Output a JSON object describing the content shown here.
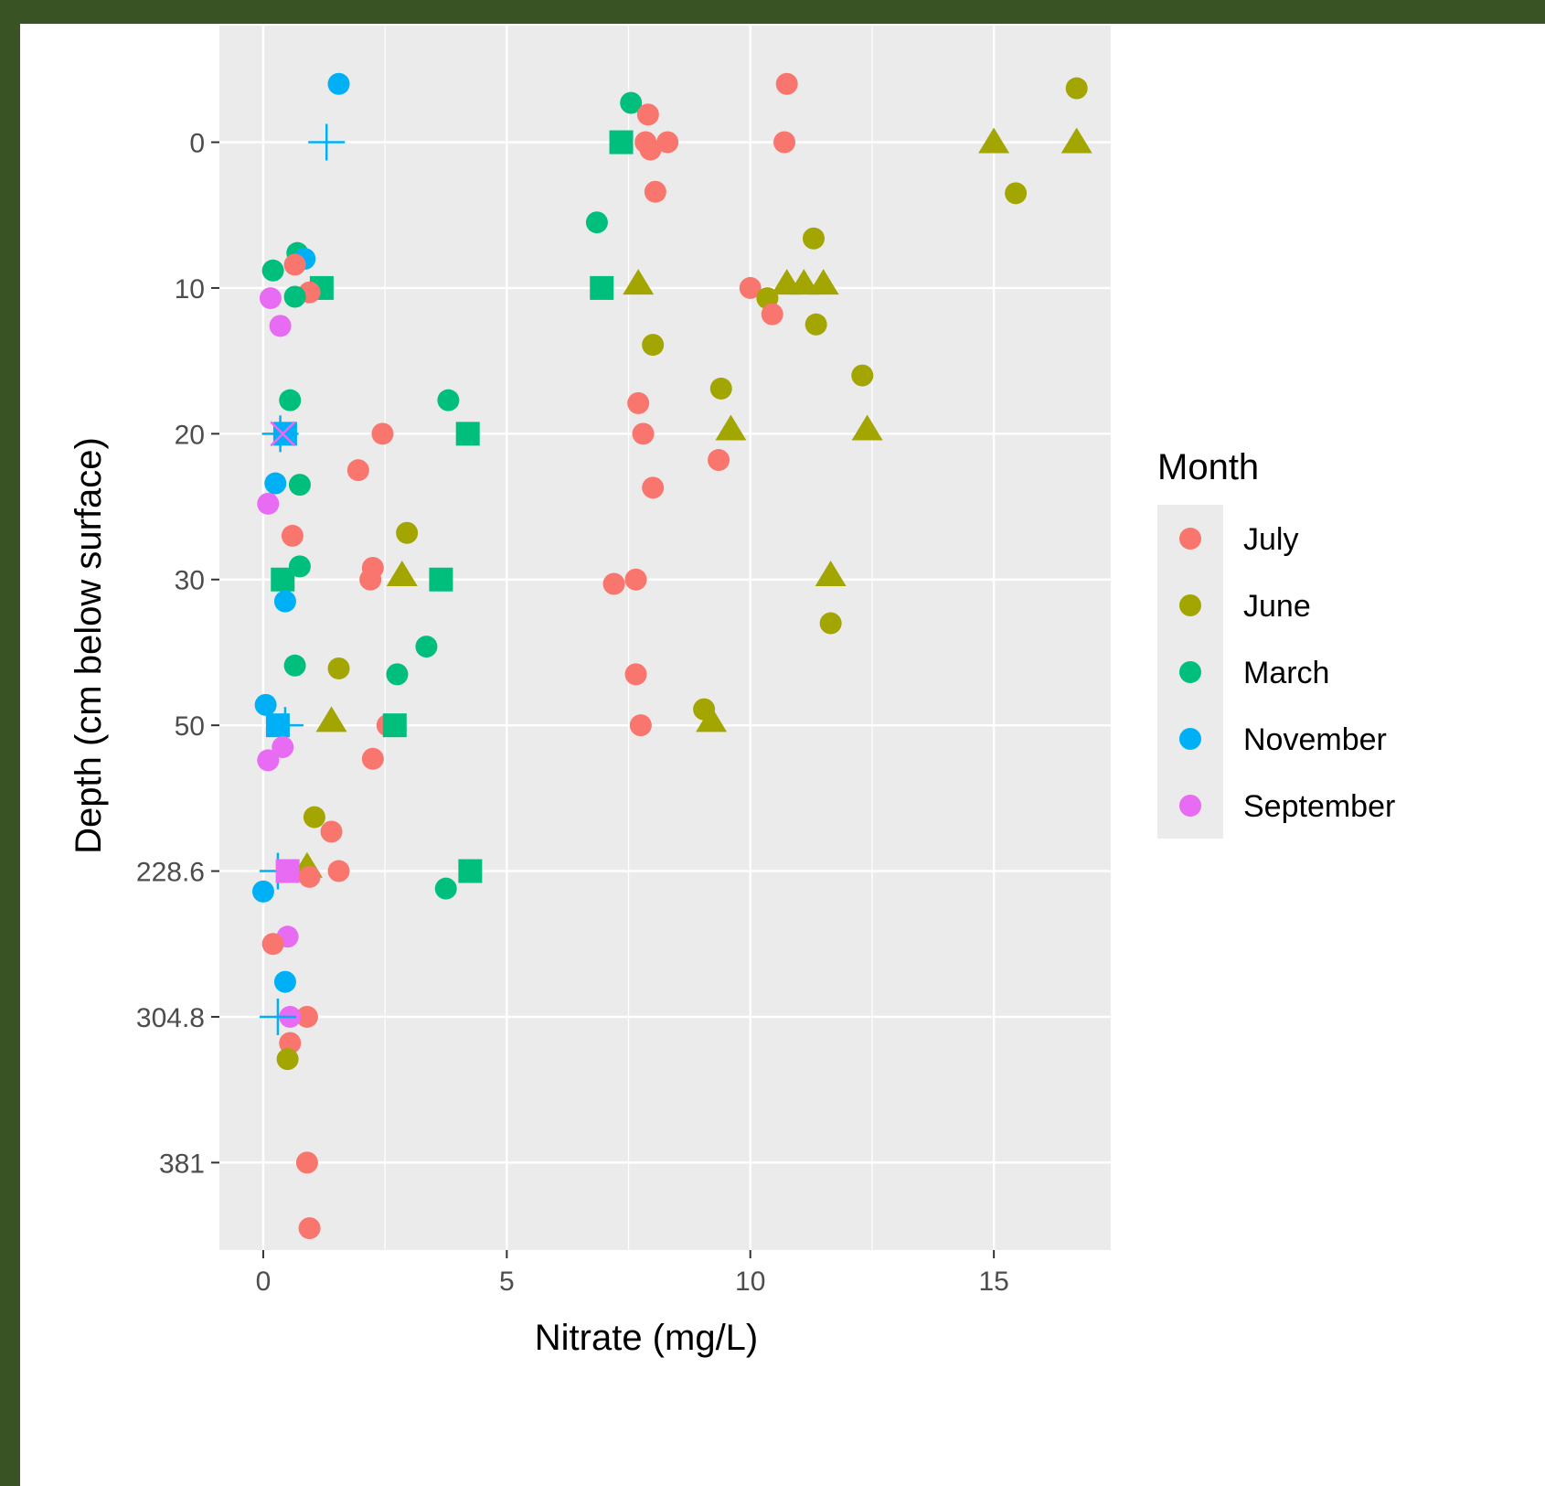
{
  "chart_data": {
    "type": "scatter",
    "title": "",
    "xlabel": "Nitrate (mg/L)",
    "ylabel": "Depth (cm below surface)",
    "xlim": [
      -0.9,
      17.4
    ],
    "x_ticks": [
      0,
      5,
      10,
      15
    ],
    "y_ticks": [
      "0",
      "10",
      "20",
      "30",
      "50",
      "228.6",
      "304.8",
      "381"
    ],
    "y_axis_note": "discrete depth categories, top to bottom",
    "grid": true,
    "legend_title": "Month",
    "legend_position": "right",
    "colors": {
      "July": "#F8766D",
      "June": "#A3A500",
      "March": "#00BF7D",
      "November": "#00B0F6",
      "September": "#E76BF3"
    },
    "legend": [
      "July",
      "June",
      "March",
      "November",
      "September"
    ],
    "points": [
      {
        "m": "November",
        "x": 1.55,
        "y": -0.4,
        "s": "circle"
      },
      {
        "m": "July",
        "x": 10.75,
        "y": -0.4,
        "s": "circle"
      },
      {
        "m": "June",
        "x": 16.7,
        "y": -0.37,
        "s": "circle"
      },
      {
        "m": "March",
        "x": 7.55,
        "y": -0.27,
        "s": "circle"
      },
      {
        "m": "July",
        "x": 7.9,
        "y": -0.19,
        "s": "circle"
      },
      {
        "m": "November",
        "x": 1.3,
        "y": 0,
        "s": "plus"
      },
      {
        "m": "March",
        "x": 7.35,
        "y": 0,
        "s": "square"
      },
      {
        "m": "July",
        "x": 7.85,
        "y": 0,
        "s": "circle"
      },
      {
        "m": "July",
        "x": 8.3,
        "y": 0,
        "s": "circle"
      },
      {
        "m": "July",
        "x": 7.95,
        "y": 0.05,
        "s": "circle"
      },
      {
        "m": "July",
        "x": 10.7,
        "y": 0,
        "s": "circle"
      },
      {
        "m": "June",
        "x": 15.0,
        "y": 0,
        "s": "triangle"
      },
      {
        "m": "June",
        "x": 16.7,
        "y": 0,
        "s": "triangle"
      },
      {
        "m": "July",
        "x": 8.05,
        "y": 0.34,
        "s": "circle"
      },
      {
        "m": "June",
        "x": 15.45,
        "y": 0.35,
        "s": "circle"
      },
      {
        "m": "March",
        "x": 6.85,
        "y": 0.55,
        "s": "circle"
      },
      {
        "m": "June",
        "x": 11.3,
        "y": 0.66,
        "s": "circle"
      },
      {
        "m": "March",
        "x": 0.7,
        "y": 0.76,
        "s": "circle"
      },
      {
        "m": "November",
        "x": 0.85,
        "y": 0.8,
        "s": "circle"
      },
      {
        "m": "July",
        "x": 0.65,
        "y": 0.84,
        "s": "circle"
      },
      {
        "m": "March",
        "x": 0.2,
        "y": 0.88,
        "s": "circle"
      },
      {
        "m": "March",
        "x": 1.2,
        "y": 1.0,
        "s": "square"
      },
      {
        "m": "July",
        "x": 0.95,
        "y": 1.03,
        "s": "circle"
      },
      {
        "m": "March",
        "x": 0.65,
        "y": 1.06,
        "s": "circle"
      },
      {
        "m": "March",
        "x": 6.95,
        "y": 1.0,
        "s": "square"
      },
      {
        "m": "June",
        "x": 7.7,
        "y": 0.97,
        "s": "triangle"
      },
      {
        "m": "July",
        "x": 10.0,
        "y": 1.0,
        "s": "circle"
      },
      {
        "m": "June",
        "x": 10.35,
        "y": 1.07,
        "s": "circle"
      },
      {
        "m": "June",
        "x": 10.75,
        "y": 0.97,
        "s": "triangle"
      },
      {
        "m": "June",
        "x": 11.1,
        "y": 0.97,
        "s": "triangle"
      },
      {
        "m": "June",
        "x": 11.5,
        "y": 0.97,
        "s": "triangle"
      },
      {
        "m": "July",
        "x": 10.45,
        "y": 1.18,
        "s": "circle"
      },
      {
        "m": "September",
        "x": 0.15,
        "y": 1.07,
        "s": "circle"
      },
      {
        "m": "June",
        "x": 11.35,
        "y": 1.25,
        "s": "circle"
      },
      {
        "m": "September",
        "x": 0.35,
        "y": 1.26,
        "s": "circle"
      },
      {
        "m": "June",
        "x": 8.0,
        "y": 1.39,
        "s": "circle"
      },
      {
        "m": "June",
        "x": 12.3,
        "y": 1.6,
        "s": "circle"
      },
      {
        "m": "June",
        "x": 9.4,
        "y": 1.69,
        "s": "circle"
      },
      {
        "m": "March",
        "x": 0.55,
        "y": 1.77,
        "s": "circle"
      },
      {
        "m": "March",
        "x": 3.8,
        "y": 1.77,
        "s": "circle"
      },
      {
        "m": "July",
        "x": 7.7,
        "y": 1.79,
        "s": "circle"
      },
      {
        "m": "November",
        "x": 0.45,
        "y": 2.0,
        "s": "square"
      },
      {
        "m": "November",
        "x": 0.35,
        "y": 2.0,
        "s": "plus"
      },
      {
        "m": "September",
        "x": 0.4,
        "y": 2.0,
        "s": "cross"
      },
      {
        "m": "July",
        "x": 2.45,
        "y": 2.0,
        "s": "circle"
      },
      {
        "m": "March",
        "x": 4.2,
        "y": 2.0,
        "s": "square"
      },
      {
        "m": "July",
        "x": 7.8,
        "y": 2.0,
        "s": "circle"
      },
      {
        "m": "June",
        "x": 9.6,
        "y": 1.97,
        "s": "triangle"
      },
      {
        "m": "June",
        "x": 12.4,
        "y": 1.97,
        "s": "triangle"
      },
      {
        "m": "July",
        "x": 9.35,
        "y": 2.18,
        "s": "circle"
      },
      {
        "m": "July",
        "x": 1.95,
        "y": 2.25,
        "s": "circle"
      },
      {
        "m": "November",
        "x": 0.25,
        "y": 2.34,
        "s": "circle"
      },
      {
        "m": "March",
        "x": 0.75,
        "y": 2.35,
        "s": "circle"
      },
      {
        "m": "July",
        "x": 8.0,
        "y": 2.37,
        "s": "circle"
      },
      {
        "m": "September",
        "x": 0.1,
        "y": 2.48,
        "s": "circle"
      },
      {
        "m": "June",
        "x": 2.95,
        "y": 2.68,
        "s": "circle"
      },
      {
        "m": "July",
        "x": 0.6,
        "y": 2.7,
        "s": "circle"
      },
      {
        "m": "March",
        "x": 0.75,
        "y": 2.91,
        "s": "circle"
      },
      {
        "m": "March",
        "x": 0.4,
        "y": 3.0,
        "s": "square"
      },
      {
        "m": "July",
        "x": 2.25,
        "y": 2.92,
        "s": "circle"
      },
      {
        "m": "July",
        "x": 2.2,
        "y": 3.0,
        "s": "circle"
      },
      {
        "m": "June",
        "x": 2.85,
        "y": 2.97,
        "s": "triangle"
      },
      {
        "m": "March",
        "x": 3.65,
        "y": 3.0,
        "s": "square"
      },
      {
        "m": "July",
        "x": 7.2,
        "y": 3.03,
        "s": "circle"
      },
      {
        "m": "July",
        "x": 7.65,
        "y": 3.0,
        "s": "circle"
      },
      {
        "m": "June",
        "x": 11.65,
        "y": 2.97,
        "s": "triangle"
      },
      {
        "m": "November",
        "x": 0.45,
        "y": 3.15,
        "s": "circle"
      },
      {
        "m": "June",
        "x": 11.65,
        "y": 3.3,
        "s": "circle"
      },
      {
        "m": "March",
        "x": 3.35,
        "y": 3.46,
        "s": "circle"
      },
      {
        "m": "March",
        "x": 0.65,
        "y": 3.59,
        "s": "circle"
      },
      {
        "m": "June",
        "x": 1.55,
        "y": 3.61,
        "s": "circle"
      },
      {
        "m": "March",
        "x": 2.75,
        "y": 3.65,
        "s": "circle"
      },
      {
        "m": "July",
        "x": 7.65,
        "y": 3.65,
        "s": "circle"
      },
      {
        "m": "November",
        "x": 0.05,
        "y": 3.86,
        "s": "circle"
      },
      {
        "m": "June",
        "x": 9.05,
        "y": 3.89,
        "s": "circle"
      },
      {
        "m": "November",
        "x": 0.3,
        "y": 4.0,
        "s": "square"
      },
      {
        "m": "November",
        "x": 0.45,
        "y": 4.0,
        "s": "plus"
      },
      {
        "m": "June",
        "x": 1.4,
        "y": 3.97,
        "s": "triangle"
      },
      {
        "m": "July",
        "x": 2.55,
        "y": 4.0,
        "s": "circle"
      },
      {
        "m": "March",
        "x": 2.7,
        "y": 4.0,
        "s": "square"
      },
      {
        "m": "July",
        "x": 7.75,
        "y": 4.0,
        "s": "circle"
      },
      {
        "m": "June",
        "x": 9.2,
        "y": 3.97,
        "s": "triangle"
      },
      {
        "m": "September",
        "x": 0.4,
        "y": 4.15,
        "s": "circle"
      },
      {
        "m": "July",
        "x": 2.25,
        "y": 4.23,
        "s": "circle"
      },
      {
        "m": "September",
        "x": 0.1,
        "y": 4.24,
        "s": "circle"
      },
      {
        "m": "June",
        "x": 1.05,
        "y": 4.63,
        "s": "circle"
      },
      {
        "m": "July",
        "x": 1.4,
        "y": 4.73,
        "s": "circle"
      },
      {
        "m": "June",
        "x": 0.9,
        "y": 4.97,
        "s": "triangle"
      },
      {
        "m": "November",
        "x": 0.3,
        "y": 5.0,
        "s": "plus"
      },
      {
        "m": "September",
        "x": 0.5,
        "y": 5.0,
        "s": "square"
      },
      {
        "m": "July",
        "x": 0.95,
        "y": 5.04,
        "s": "circle"
      },
      {
        "m": "July",
        "x": 1.55,
        "y": 5.0,
        "s": "circle"
      },
      {
        "m": "March",
        "x": 4.25,
        "y": 5.0,
        "s": "square"
      },
      {
        "m": "March",
        "x": 3.75,
        "y": 5.12,
        "s": "circle"
      },
      {
        "m": "November",
        "x": 0.0,
        "y": 5.14,
        "s": "circle"
      },
      {
        "m": "September",
        "x": 0.5,
        "y": 5.45,
        "s": "circle"
      },
      {
        "m": "July",
        "x": 0.2,
        "y": 5.5,
        "s": "circle"
      },
      {
        "m": "November",
        "x": 0.45,
        "y": 5.76,
        "s": "circle"
      },
      {
        "m": "July",
        "x": 0.9,
        "y": 6.0,
        "s": "circle"
      },
      {
        "m": "September",
        "x": 0.55,
        "y": 6.0,
        "s": "circle"
      },
      {
        "m": "November",
        "x": 0.3,
        "y": 6.0,
        "s": "plus"
      },
      {
        "m": "July",
        "x": 0.55,
        "y": 6.18,
        "s": "circle"
      },
      {
        "m": "June",
        "x": 0.5,
        "y": 6.29,
        "s": "circle"
      },
      {
        "m": "July",
        "x": 0.9,
        "y": 7.0,
        "s": "circle"
      },
      {
        "m": "July",
        "x": 0.95,
        "y": 7.45,
        "s": "circle"
      }
    ]
  }
}
